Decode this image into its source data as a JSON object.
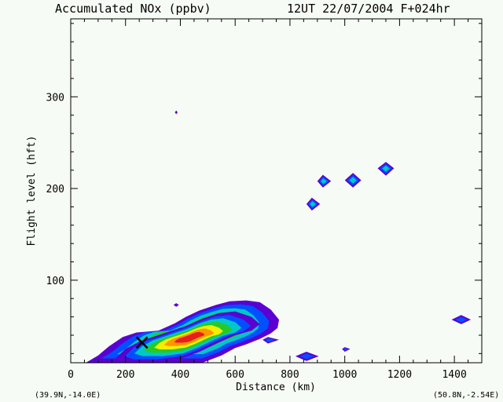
{
  "chart_data": {
    "type": "contour",
    "title_left": "Accumulated NOx  (ppbv)",
    "title_right": "12UT 22/07/2004  F+024hr",
    "xlabel": "Distance  (km)",
    "ylabel": "Flight level  (hft)",
    "xlim": [
      0,
      1500
    ],
    "ylim": [
      10,
      385
    ],
    "x_ticks": [
      0,
      200,
      400,
      600,
      800,
      1000,
      1200,
      1400
    ],
    "y_ticks": [
      100,
      200,
      300
    ],
    "start_label": "(39.9N,-14.0E)",
    "end_label": "(50.8N,-2.54E)",
    "level_colors": [
      "#5a00d2",
      "#0050ff",
      "#00c8c8",
      "#28c828",
      "#f0f000",
      "#ff9600",
      "#e61e1e"
    ],
    "marker": {
      "symbol": "x",
      "x": 260,
      "y": 32
    },
    "blobs": [
      {
        "id": "main-plume",
        "peak_level": 7,
        "points": [
          [
            55,
            10
          ],
          [
            100,
            18
          ],
          [
            140,
            28
          ],
          [
            190,
            38
          ],
          [
            240,
            43
          ],
          [
            320,
            45
          ],
          [
            380,
            53
          ],
          [
            420,
            60
          ],
          [
            470,
            67
          ],
          [
            530,
            73
          ],
          [
            580,
            77
          ],
          [
            640,
            78
          ],
          [
            690,
            76
          ],
          [
            730,
            68
          ],
          [
            760,
            57
          ],
          [
            755,
            48
          ],
          [
            730,
            42
          ],
          [
            690,
            36
          ],
          [
            640,
            30
          ],
          [
            600,
            26
          ],
          [
            550,
            18
          ],
          [
            480,
            10
          ]
        ]
      },
      {
        "id": "plume-core",
        "peak_level": 7,
        "points": [
          [
            160,
            14
          ],
          [
            200,
            25
          ],
          [
            250,
            33
          ],
          [
            300,
            38
          ],
          [
            360,
            44
          ],
          [
            420,
            50
          ],
          [
            480,
            58
          ],
          [
            540,
            64
          ],
          [
            600,
            66
          ],
          [
            660,
            60
          ],
          [
            690,
            52
          ],
          [
            660,
            45
          ],
          [
            600,
            40
          ],
          [
            540,
            32
          ],
          [
            470,
            22
          ],
          [
            400,
            14
          ],
          [
            300,
            10
          ],
          [
            200,
            10
          ]
        ]
      },
      {
        "id": "isolated-cell-1",
        "peak_level": 3,
        "points": [
          [
            860,
            183
          ],
          [
            880,
            190
          ],
          [
            910,
            183
          ],
          [
            880,
            176
          ]
        ]
      },
      {
        "id": "isolated-cell-2",
        "peak_level": 3,
        "points": [
          [
            900,
            208
          ],
          [
            920,
            215
          ],
          [
            950,
            208
          ],
          [
            920,
            201
          ]
        ]
      },
      {
        "id": "isolated-cell-3",
        "peak_level": 3,
        "points": [
          [
            1000,
            209
          ],
          [
            1030,
            217
          ],
          [
            1060,
            209
          ],
          [
            1030,
            201
          ]
        ]
      },
      {
        "id": "isolated-cell-4",
        "peak_level": 3,
        "points": [
          [
            1120,
            222
          ],
          [
            1150,
            229
          ],
          [
            1180,
            222
          ],
          [
            1150,
            214
          ]
        ]
      },
      {
        "id": "isolated-cell-5",
        "peak_level": 2,
        "points": [
          [
            1390,
            57
          ],
          [
            1425,
            62
          ],
          [
            1460,
            57
          ],
          [
            1425,
            52
          ]
        ]
      },
      {
        "id": "isolated-cell-6",
        "peak_level": 2,
        "points": [
          [
            820,
            17
          ],
          [
            860,
            22
          ],
          [
            905,
            17
          ],
          [
            860,
            12
          ]
        ]
      },
      {
        "id": "isolated-cell-7",
        "peak_level": 2,
        "points": [
          [
            990,
            25
          ],
          [
            1000,
            27
          ],
          [
            1020,
            25
          ],
          [
            1000,
            22
          ]
        ]
      },
      {
        "id": "isolated-cell-8",
        "peak_level": 2,
        "points": [
          [
            700,
            35
          ],
          [
            720,
            38
          ],
          [
            760,
            35
          ],
          [
            720,
            31
          ]
        ]
      },
      {
        "id": "isolated-cell-9",
        "peak_level": 1,
        "points": [
          [
            375,
            73
          ],
          [
            385,
            75
          ],
          [
            395,
            73
          ],
          [
            385,
            71
          ]
        ]
      },
      {
        "id": "isolated-cell-10",
        "peak_level": 1,
        "points": [
          [
            380,
            283
          ],
          [
            385,
            285
          ],
          [
            390,
            283
          ],
          [
            385,
            281
          ]
        ]
      }
    ]
  }
}
